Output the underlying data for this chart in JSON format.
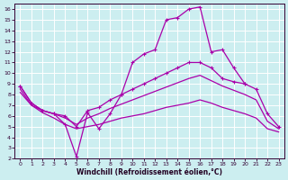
{
  "background_color": "#cceef0",
  "grid_color": "#ffffff",
  "line_color": "#aa00aa",
  "xlabel": "Windchill (Refroidissement éolien,°C)",
  "yticks": [
    2,
    3,
    4,
    5,
    6,
    7,
    8,
    9,
    10,
    11,
    12,
    13,
    14,
    15,
    16
  ],
  "xticks": [
    0,
    1,
    2,
    3,
    4,
    5,
    6,
    7,
    8,
    9,
    10,
    11,
    12,
    13,
    14,
    15,
    16,
    17,
    18,
    19,
    20,
    21,
    22,
    23
  ],
  "ylim": [
    2,
    16.5
  ],
  "xlim": [
    -0.5,
    23.5
  ],
  "s1_x": [
    0,
    1,
    2,
    3,
    4,
    5,
    6,
    7,
    8,
    9,
    10,
    11,
    12,
    13,
    14,
    15,
    16,
    17,
    18,
    19,
    20
  ],
  "s1_y": [
    8.8,
    7.2,
    6.5,
    6.2,
    5.2,
    2.2,
    6.3,
    4.8,
    6.2,
    8.0,
    11.0,
    11.8,
    12.2,
    15.0,
    15.2,
    16.0,
    16.2,
    12.0,
    12.2,
    10.5,
    9.0
  ],
  "s2_x": [
    0,
    1,
    2,
    3,
    4,
    5,
    6,
    7,
    8,
    9,
    10,
    11,
    12,
    13,
    14,
    15,
    16,
    17,
    18,
    19,
    20,
    21,
    22,
    23
  ],
  "s2_y": [
    8.8,
    7.2,
    6.5,
    6.2,
    6.0,
    5.0,
    6.5,
    6.8,
    7.5,
    8.0,
    8.5,
    9.0,
    9.5,
    10.0,
    10.5,
    11.0,
    11.0,
    10.5,
    9.5,
    9.2,
    9.0,
    8.5,
    6.2,
    5.0
  ],
  "s3_x": [
    0,
    1,
    2,
    3,
    4,
    5,
    6,
    7,
    8,
    9,
    10,
    11,
    12,
    13,
    14,
    15,
    16,
    17,
    18,
    19,
    20,
    21,
    22,
    23
  ],
  "s3_y": [
    8.5,
    7.0,
    6.5,
    6.2,
    5.8,
    5.2,
    5.8,
    6.2,
    6.7,
    7.1,
    7.5,
    7.9,
    8.3,
    8.7,
    9.1,
    9.5,
    9.8,
    9.3,
    8.8,
    8.4,
    8.0,
    7.5,
    5.5,
    4.8
  ],
  "s4_x": [
    0,
    1,
    2,
    3,
    4,
    5,
    6,
    7,
    8,
    9,
    10,
    11,
    12,
    13,
    14,
    15,
    16,
    17,
    18,
    19,
    20,
    21,
    22,
    23
  ],
  "s4_y": [
    8.2,
    7.0,
    6.3,
    5.8,
    5.2,
    4.8,
    5.0,
    5.2,
    5.5,
    5.8,
    6.0,
    6.2,
    6.5,
    6.8,
    7.0,
    7.2,
    7.5,
    7.2,
    6.8,
    6.5,
    6.2,
    5.8,
    4.8,
    4.5
  ]
}
